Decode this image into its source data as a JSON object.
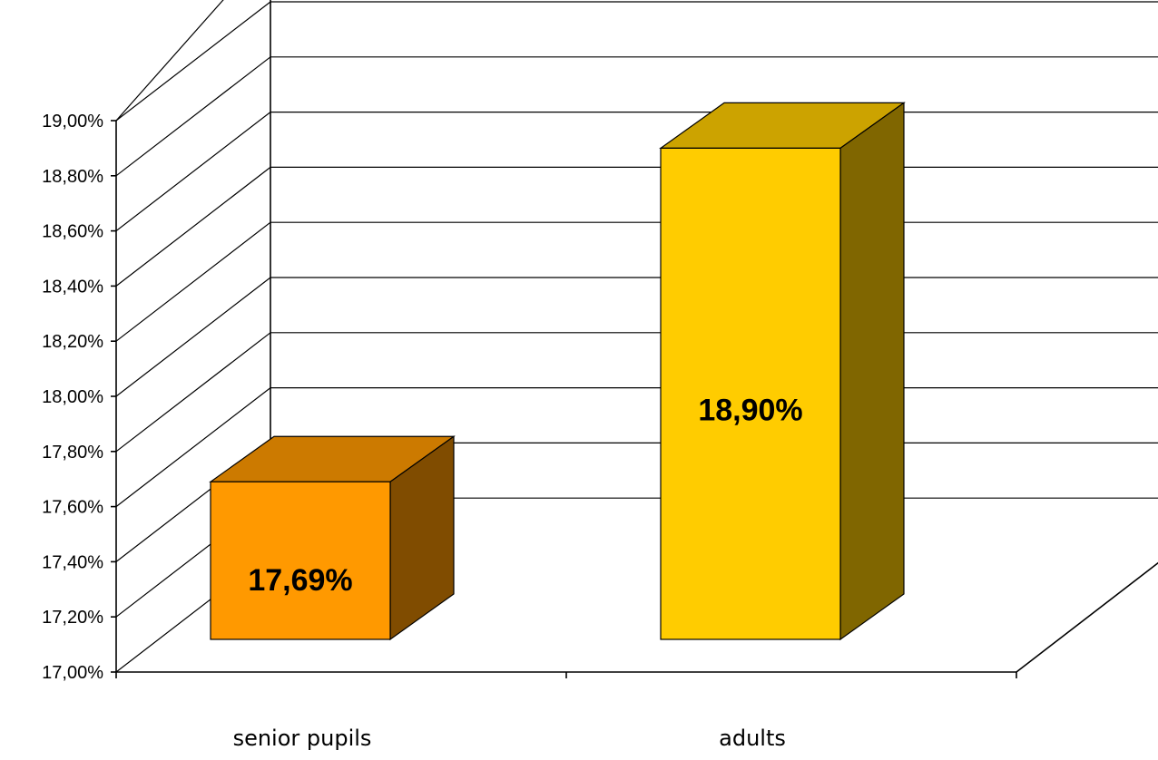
{
  "chart_data": {
    "type": "bar",
    "style": "3d",
    "categories": [
      "senior pupils",
      "adults"
    ],
    "values": [
      17.69,
      18.9
    ],
    "value_labels": [
      "17,69%",
      "18,90%"
    ],
    "ylim": [
      17.0,
      19.0
    ],
    "ytick_values": [
      17.0,
      17.2,
      17.4,
      17.6,
      17.8,
      18.0,
      18.2,
      18.4,
      18.6,
      18.8,
      19.0
    ],
    "ytick_labels": [
      "17,00%",
      "17,20%",
      "17,40%",
      "17,60%",
      "17,80%",
      "18,00%",
      "18,20%",
      "18,40%",
      "18,60%",
      "18,80%",
      "19,00%"
    ],
    "grid": true,
    "legend": false,
    "colors": {
      "senior pupils": {
        "front": "#ff9900",
        "top": "#cc7a00",
        "side": "#804c00"
      },
      "adults": {
        "front": "#ffcc00",
        "top": "#cca300",
        "side": "#806600"
      }
    }
  }
}
